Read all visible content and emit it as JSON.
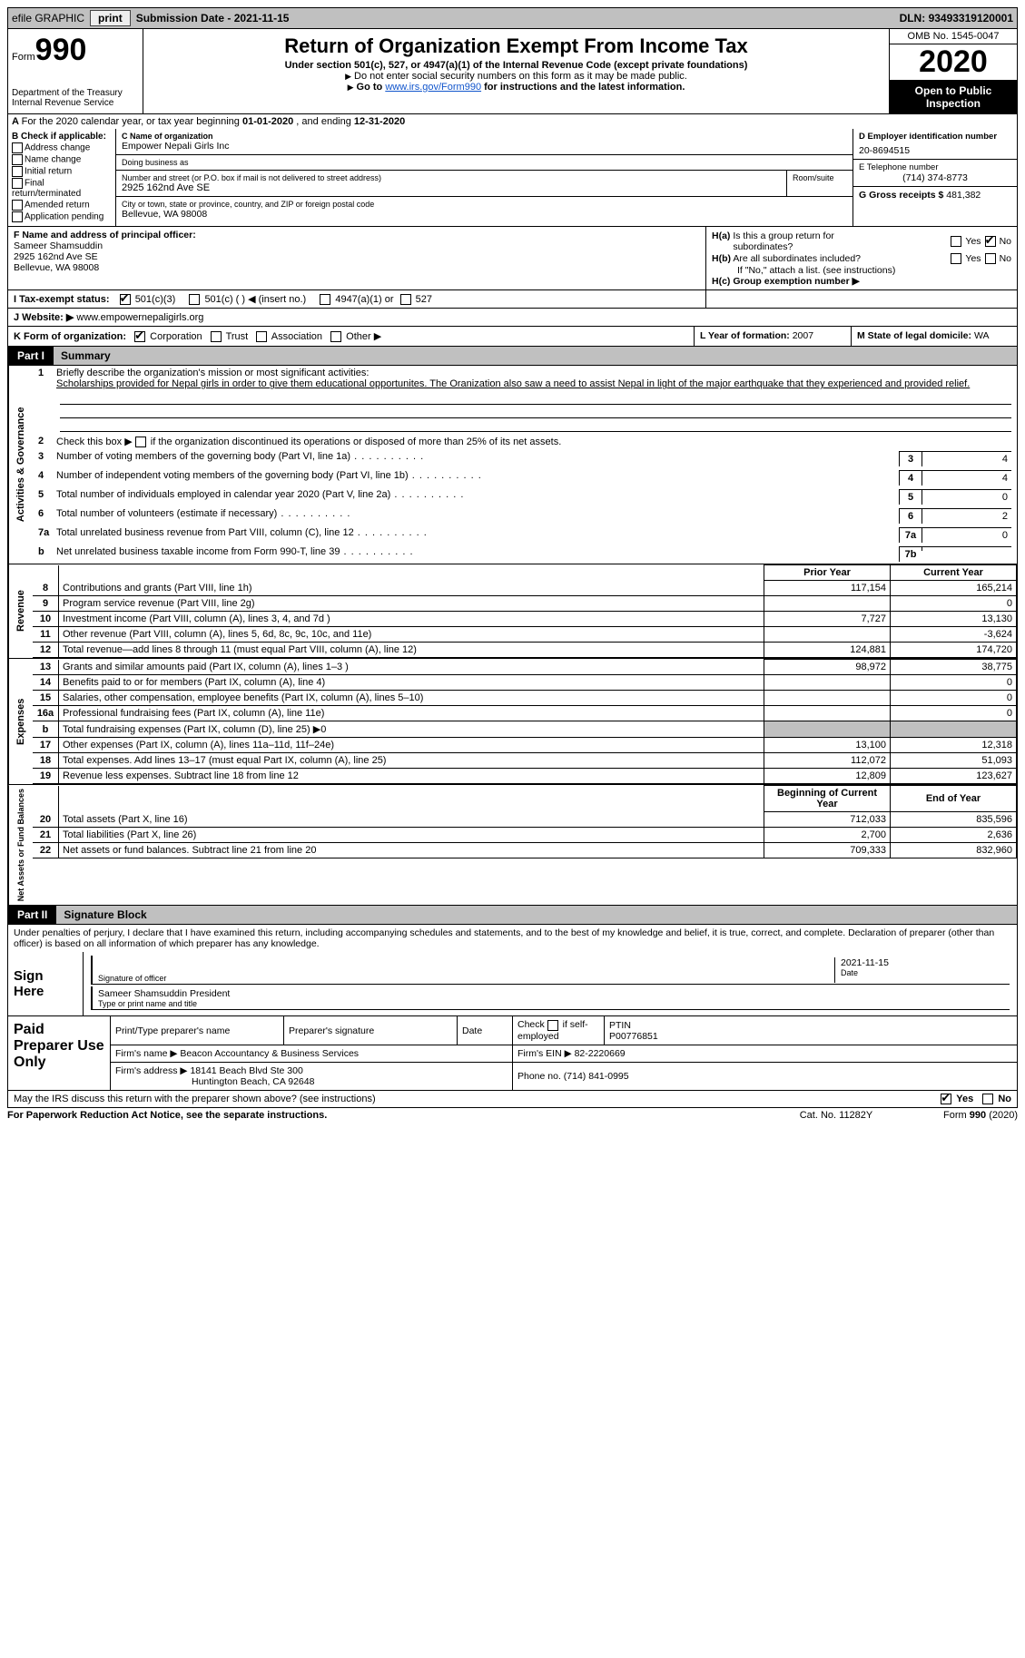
{
  "topbar": {
    "efile": "efile GRAPHIC",
    "print": "print",
    "submission_label": "Submission Date - ",
    "submission_date": "2021-11-15",
    "dln_label": "DLN: ",
    "dln": "93493319120001"
  },
  "header": {
    "form_word": "Form",
    "form_num": "990",
    "dept": "Department of the Treasury\nInternal Revenue Service",
    "title": "Return of Organization Exempt From Income Tax",
    "subtitle": "Under section 501(c), 527, or 4947(a)(1) of the Internal Revenue Code (except private foundations)",
    "note1": "Do not enter social security numbers on this form as it may be made public.",
    "note2_pre": "Go to ",
    "note2_link": "www.irs.gov/Form990",
    "note2_post": " for instructions and the latest information.",
    "omb": "OMB No. 1545-0047",
    "year": "2020",
    "open": "Open to Public Inspection"
  },
  "rowA": {
    "text_pre": "For the 2020 calendar year, or tax year beginning ",
    "begin": "01-01-2020",
    "mid": " , and ending ",
    "end": "12-31-2020"
  },
  "B": {
    "label": "B Check if applicable:",
    "opts": [
      "Address change",
      "Name change",
      "Initial return",
      "Final return/terminated",
      "Amended return",
      "Application pending"
    ]
  },
  "C": {
    "name_label": "C Name of organization",
    "name": "Empower Nepali Girls Inc",
    "dba_label": "Doing business as",
    "dba": "",
    "street_label": "Number and street (or P.O. box if mail is not delivered to street address)",
    "room_label": "Room/suite",
    "street": "2925 162nd Ave SE",
    "city_label": "City or town, state or province, country, and ZIP or foreign postal code",
    "city": "Bellevue, WA  98008"
  },
  "D": {
    "ein_label": "D Employer identification number",
    "ein": "20-8694515",
    "phone_label": "E Telephone number",
    "phone": "(714) 374-8773",
    "gross_label": "G Gross receipts $ ",
    "gross": "481,382"
  },
  "F": {
    "label": "F  Name and address of principal officer:",
    "name": "Sameer Shamsuddin",
    "street": "2925 162nd Ave SE",
    "city": "Bellevue, WA  98008"
  },
  "H": {
    "a_label": "H(a)  Is this a group return for subordinates?",
    "b_label": "H(b)  Are all subordinates included?",
    "note": "If \"No,\" attach a list. (see instructions)",
    "c_label": "H(c)  Group exemption number ▶",
    "yes": "Yes",
    "no": "No"
  },
  "I": {
    "label": "I    Tax-exempt status:",
    "opts": [
      "501(c)(3)",
      "501(c) (  ) ◀ (insert no.)",
      "4947(a)(1) or",
      "527"
    ]
  },
  "J": {
    "label": "J   Website: ▶ ",
    "value": "www.empowernepaligirls.org"
  },
  "K": {
    "label": "K Form of organization:",
    "opts": [
      "Corporation",
      "Trust",
      "Association",
      "Other ▶"
    ]
  },
  "L": {
    "label": "L Year of formation: ",
    "value": "2007"
  },
  "M": {
    "label": "M State of legal domicile: ",
    "value": "WA"
  },
  "part1": {
    "tab": "Part I",
    "title": "Summary"
  },
  "s1": {
    "side": "Activities & Governance",
    "q1_label": "Briefly describe the organization's mission or most significant activities:",
    "q1_text": "Scholarships provided for Nepal girls in order to give them educational opportunites. The Oranization also saw a need to assist Nepal in light of the major earthquake that they experienced and provided relief.",
    "q2": "Check this box ▶       if the organization discontinued its operations or disposed of more than 25% of its net assets.",
    "lines": [
      {
        "n": "3",
        "t": "Number of voting members of the governing body (Part VI, line 1a)",
        "box": "3",
        "v": "4"
      },
      {
        "n": "4",
        "t": "Number of independent voting members of the governing body (Part VI, line 1b)",
        "box": "4",
        "v": "4"
      },
      {
        "n": "5",
        "t": "Total number of individuals employed in calendar year 2020 (Part V, line 2a)",
        "box": "5",
        "v": "0"
      },
      {
        "n": "6",
        "t": "Total number of volunteers (estimate if necessary)",
        "box": "6",
        "v": "2"
      },
      {
        "n": "7a",
        "t": "Total unrelated business revenue from Part VIII, column (C), line 12",
        "box": "7a",
        "v": "0"
      },
      {
        "n": "b",
        "t": "Net unrelated business taxable income from Form 990-T, line 39",
        "box": "7b",
        "v": ""
      }
    ]
  },
  "fin": {
    "h_prior": "Prior Year",
    "h_curr": "Current Year",
    "h_begin": "Beginning of Current Year",
    "h_end": "End of Year",
    "revenue_side": "Revenue",
    "expenses_side": "Expenses",
    "netassets_side": "Net Assets or Fund Balances",
    "rows_rev": [
      {
        "n": "8",
        "t": "Contributions and grants (Part VIII, line 1h)",
        "p": "117,154",
        "c": "165,214"
      },
      {
        "n": "9",
        "t": "Program service revenue (Part VIII, line 2g)",
        "p": "",
        "c": "0"
      },
      {
        "n": "10",
        "t": "Investment income (Part VIII, column (A), lines 3, 4, and 7d )",
        "p": "7,727",
        "c": "13,130"
      },
      {
        "n": "11",
        "t": "Other revenue (Part VIII, column (A), lines 5, 6d, 8c, 9c, 10c, and 11e)",
        "p": "",
        "c": "-3,624"
      },
      {
        "n": "12",
        "t": "Total revenue—add lines 8 through 11 (must equal Part VIII, column (A), line 12)",
        "p": "124,881",
        "c": "174,720"
      }
    ],
    "rows_exp": [
      {
        "n": "13",
        "t": "Grants and similar amounts paid (Part IX, column (A), lines 1–3 )",
        "p": "98,972",
        "c": "38,775"
      },
      {
        "n": "14",
        "t": "Benefits paid to or for members (Part IX, column (A), line 4)",
        "p": "",
        "c": "0"
      },
      {
        "n": "15",
        "t": "Salaries, other compensation, employee benefits (Part IX, column (A), lines 5–10)",
        "p": "",
        "c": "0"
      },
      {
        "n": "16a",
        "t": "Professional fundraising fees (Part IX, column (A), line 11e)",
        "p": "",
        "c": "0"
      },
      {
        "n": "b",
        "t": "Total fundraising expenses (Part IX, column (D), line 25) ▶0",
        "grey": true
      },
      {
        "n": "17",
        "t": "Other expenses (Part IX, column (A), lines 11a–11d, 11f–24e)",
        "p": "13,100",
        "c": "12,318"
      },
      {
        "n": "18",
        "t": "Total expenses. Add lines 13–17 (must equal Part IX, column (A), line 25)",
        "p": "112,072",
        "c": "51,093"
      },
      {
        "n": "19",
        "t": "Revenue less expenses. Subtract line 18 from line 12",
        "p": "12,809",
        "c": "123,627"
      }
    ],
    "rows_net": [
      {
        "n": "20",
        "t": "Total assets (Part X, line 16)",
        "p": "712,033",
        "c": "835,596"
      },
      {
        "n": "21",
        "t": "Total liabilities (Part X, line 26)",
        "p": "2,700",
        "c": "2,636"
      },
      {
        "n": "22",
        "t": "Net assets or fund balances. Subtract line 21 from line 20",
        "p": "709,333",
        "c": "832,960"
      }
    ]
  },
  "part2": {
    "tab": "Part II",
    "title": "Signature Block"
  },
  "penalty": "Under penalties of perjury, I declare that I have examined this return, including accompanying schedules and statements, and to the best of my knowledge and belief, it is true, correct, and complete. Declaration of preparer (other than officer) is based on all information of which preparer has any knowledge.",
  "sign": {
    "label": "Sign Here",
    "sig_label": "Signature of officer",
    "date_label": "Date",
    "date": "2021-11-15",
    "name": "Sameer Shamsuddin  President",
    "name_label": "Type or print name and title"
  },
  "prep": {
    "label": "Paid Preparer Use Only",
    "h_name": "Print/Type preparer's name",
    "h_sig": "Preparer's signature",
    "h_date": "Date",
    "h_check": "Check         if self-employed",
    "h_ptin": "PTIN",
    "ptin": "P00776851",
    "firm_label": "Firm's name    ▶ ",
    "firm": "Beacon Accountancy & Business Services",
    "ein_label": "Firm's EIN ▶ ",
    "ein": "82-2220669",
    "addr_label": "Firm's address ▶ ",
    "addr1": "18141 Beach Blvd Ste 300",
    "addr2": "Huntington Beach, CA  92648",
    "phone_label": "Phone no. ",
    "phone": "(714) 841-0995"
  },
  "discuss": {
    "text": "May the IRS discuss this return with the preparer shown above? (see instructions)",
    "yes": "Yes",
    "no": "No"
  },
  "footer": {
    "l": "For Paperwork Reduction Act Notice, see the separate instructions.",
    "m": "Cat. No. 11282Y",
    "r": "Form 990 (2020)"
  }
}
